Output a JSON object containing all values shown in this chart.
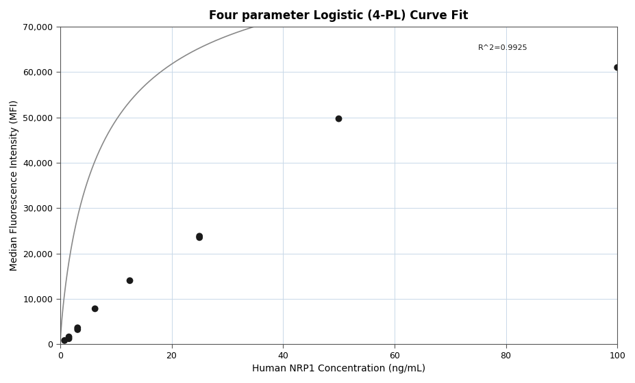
{
  "title": "Four parameter Logistic (4-PL) Curve Fit",
  "xlabel": "Human NRP1 Concentration (ng/mL)",
  "ylabel": "Median Fluorescence Intensity (MFI)",
  "scatter_x": [
    0.781,
    1.563,
    1.563,
    3.125,
    3.125,
    6.25,
    12.5,
    25.0,
    25.0,
    50.0,
    100.0
  ],
  "scatter_y": [
    800,
    1200,
    1600,
    3200,
    3600,
    7800,
    14000,
    23500,
    23800,
    49700,
    61000
  ],
  "xlim": [
    0,
    100
  ],
  "ylim": [
    0,
    70000
  ],
  "yticks": [
    0,
    10000,
    20000,
    30000,
    40000,
    50000,
    60000,
    70000
  ],
  "xticks": [
    0,
    20,
    40,
    60,
    80,
    100
  ],
  "r_squared": "R^2=0.9925",
  "r_squared_x": 75,
  "r_squared_y": 64500,
  "scatter_color": "#1a1a1a",
  "scatter_size": 50,
  "line_color": "#888888",
  "grid_color": "#c8d8e8",
  "background_color": "#ffffff",
  "spine_color": "#555555",
  "title_fontsize": 12,
  "label_fontsize": 10,
  "tick_fontsize": 9,
  "4pl_A": 200,
  "4pl_B": 0.85,
  "4pl_C": 8.0,
  "4pl_D": 90000
}
